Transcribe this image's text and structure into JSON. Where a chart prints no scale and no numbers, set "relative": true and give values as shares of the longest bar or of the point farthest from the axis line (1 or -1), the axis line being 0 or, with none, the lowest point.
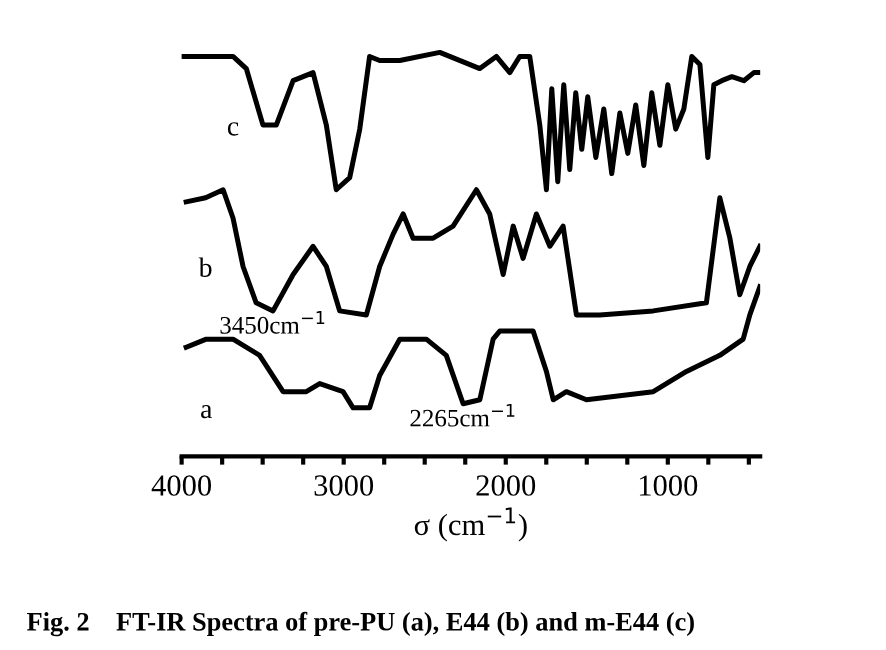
{
  "chart_data": {
    "type": "line",
    "relative": true,
    "xlabel": "σ (cm$^{−1}$)",
    "xlim": [
      4000,
      430
    ],
    "xticks": [
      4000,
      {
        "value": 3750,
        "label": null
      },
      {
        "value": 3500,
        "label": null
      },
      {
        "value": 3250,
        "label": null
      },
      3000,
      {
        "value": 2750,
        "label": null
      },
      {
        "value": 2500,
        "label": null
      },
      {
        "value": 2250,
        "label": null
      },
      2000,
      {
        "value": 1750,
        "label": null
      },
      {
        "value": 1500,
        "label": null
      },
      {
        "value": 1250,
        "label": null
      },
      1000,
      {
        "value": 750,
        "label": null
      },
      {
        "value": 500,
        "label": null
      }
    ],
    "tick_labels": "x",
    "grid": false,
    "legend": false,
    "marker": "none",
    "line_style": "solid",
    "series": [
      {
        "name": "c",
        "color": "#000000",
        "x": [
          3990,
          3683,
          3601,
          3498,
          3416,
          3312,
          3189,
          3107,
          3046,
          2963,
          2901,
          2840,
          2778,
          2654,
          2407,
          2160,
          2058,
          1975,
          1914,
          1852,
          1790,
          1749,
          1716,
          1679,
          1642,
          1605,
          1568,
          1531,
          1494,
          1444,
          1395,
          1346,
          1296,
          1247,
          1198,
          1148,
          1099,
          1049,
          1000,
          951,
          901,
          852,
          802,
          753,
          716,
          667,
          605,
          531,
          469,
          432
        ],
        "values": [
          0.99,
          0.99,
          0.96,
          0.82,
          0.82,
          0.93,
          0.95,
          0.82,
          0.66,
          0.69,
          0.81,
          0.99,
          0.98,
          0.98,
          1.0,
          0.96,
          0.99,
          0.95,
          0.99,
          0.99,
          0.82,
          0.66,
          0.91,
          0.68,
          0.92,
          0.71,
          0.9,
          0.76,
          0.89,
          0.74,
          0.86,
          0.7,
          0.85,
          0.75,
          0.87,
          0.72,
          0.9,
          0.77,
          0.92,
          0.81,
          0.86,
          0.99,
          0.97,
          0.74,
          0.92,
          0.93,
          0.94,
          0.93,
          0.95,
          0.95
        ]
      },
      {
        "name": "b",
        "color": "#000000",
        "x": [
          3972,
          3852,
          3744,
          3683,
          3621,
          3540,
          3436,
          3312,
          3189,
          3107,
          3025,
          2860,
          2778,
          2695,
          2633,
          2572,
          2448,
          2325,
          2181,
          2099,
          2016,
          1954,
          1893,
          1811,
          1728,
          1646,
          1564,
          1420,
          1090,
          762,
          679,
          617,
          556,
          494,
          432
        ],
        "values": [
          0.63,
          0.64,
          0.66,
          0.59,
          0.47,
          0.38,
          0.36,
          0.45,
          0.52,
          0.47,
          0.36,
          0.35,
          0.47,
          0.55,
          0.6,
          0.54,
          0.54,
          0.57,
          0.66,
          0.6,
          0.45,
          0.57,
          0.49,
          0.6,
          0.52,
          0.57,
          0.35,
          0.35,
          0.36,
          0.38,
          0.64,
          0.54,
          0.4,
          0.47,
          0.52
        ]
      },
      {
        "name": "a",
        "color": "#000000",
        "x": [
          3972,
          3848,
          3683,
          3519,
          3374,
          3231,
          3148,
          3004,
          2942,
          2840,
          2778,
          2654,
          2490,
          2367,
          2263,
          2160,
          2078,
          2037,
          1831,
          1749,
          1707,
          1626,
          1502,
          1090,
          885,
          679,
          535,
          494,
          432
        ],
        "values": [
          0.27,
          0.29,
          0.29,
          0.25,
          0.16,
          0.16,
          0.18,
          0.16,
          0.12,
          0.12,
          0.2,
          0.29,
          0.29,
          0.25,
          0.13,
          0.14,
          0.29,
          0.31,
          0.31,
          0.21,
          0.14,
          0.16,
          0.14,
          0.16,
          0.21,
          0.25,
          0.29,
          0.35,
          0.42
        ]
      }
    ],
    "annotations": [
      {
        "text": "3450cm$^{−1}$",
        "x": 3436,
        "y": 0.36
      },
      {
        "text": "2265cm$^{−1}$",
        "x": 2263,
        "y": 0.13
      },
      "Fig. 2    FT-IR Spectra of pre-PU (a), E44 (b) and m-E44 (c)"
    ]
  }
}
